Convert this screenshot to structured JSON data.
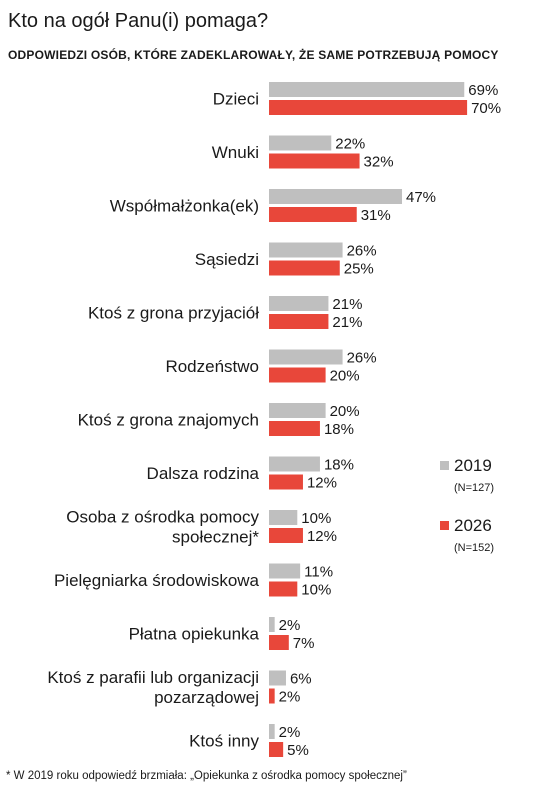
{
  "title": "Kto na ogół Panu(i) pomaga?",
  "subtitle": "ODPOWIEDZI OSÓB, KTÓRE ZADEKLAROWAŁY, ŻE SAME POTRZEBUJĄ POMOCY",
  "footnote": "* W 2019 roku odpowiedź brzmiała: „Opiekunka z ośrodka pomocy społecznej”",
  "legend": [
    {
      "label": "2019",
      "n": "(N=127)",
      "color": "#bfbfbf"
    },
    {
      "label": "2026",
      "n": "(N=152)",
      "color": "#e8473a"
    }
  ],
  "chart_data": {
    "type": "bar",
    "orientation": "horizontal",
    "unit": "%",
    "categories": [
      [
        "Dzieci"
      ],
      [
        "Wnuki"
      ],
      [
        "Współmałżonka(ek)"
      ],
      [
        "Sąsiedzi"
      ],
      [
        "Ktoś z grona przyjaciół"
      ],
      [
        "Rodzeństwo"
      ],
      [
        "Ktoś z grona znajomych"
      ],
      [
        "Dalsza rodzina"
      ],
      [
        "Osoba z ośrodka pomocy",
        "społecznej*"
      ],
      [
        "Pielęgniarka środowiskowa"
      ],
      [
        "Płatna opiekunka"
      ],
      [
        "Ktoś z parafii lub organizacji",
        "pozarządowej"
      ],
      [
        "Ktoś inny"
      ]
    ],
    "series": [
      {
        "name": "2019",
        "color": "#bfbfbf",
        "values": [
          69,
          22,
          47,
          26,
          21,
          26,
          20,
          18,
          10,
          11,
          2,
          6,
          2
        ]
      },
      {
        "name": "2026",
        "color": "#e8473a",
        "values": [
          70,
          32,
          31,
          25,
          21,
          20,
          18,
          12,
          12,
          10,
          7,
          2,
          5
        ]
      }
    ],
    "xlim": [
      0,
      70
    ],
    "grid": false,
    "legend_position": "right"
  }
}
